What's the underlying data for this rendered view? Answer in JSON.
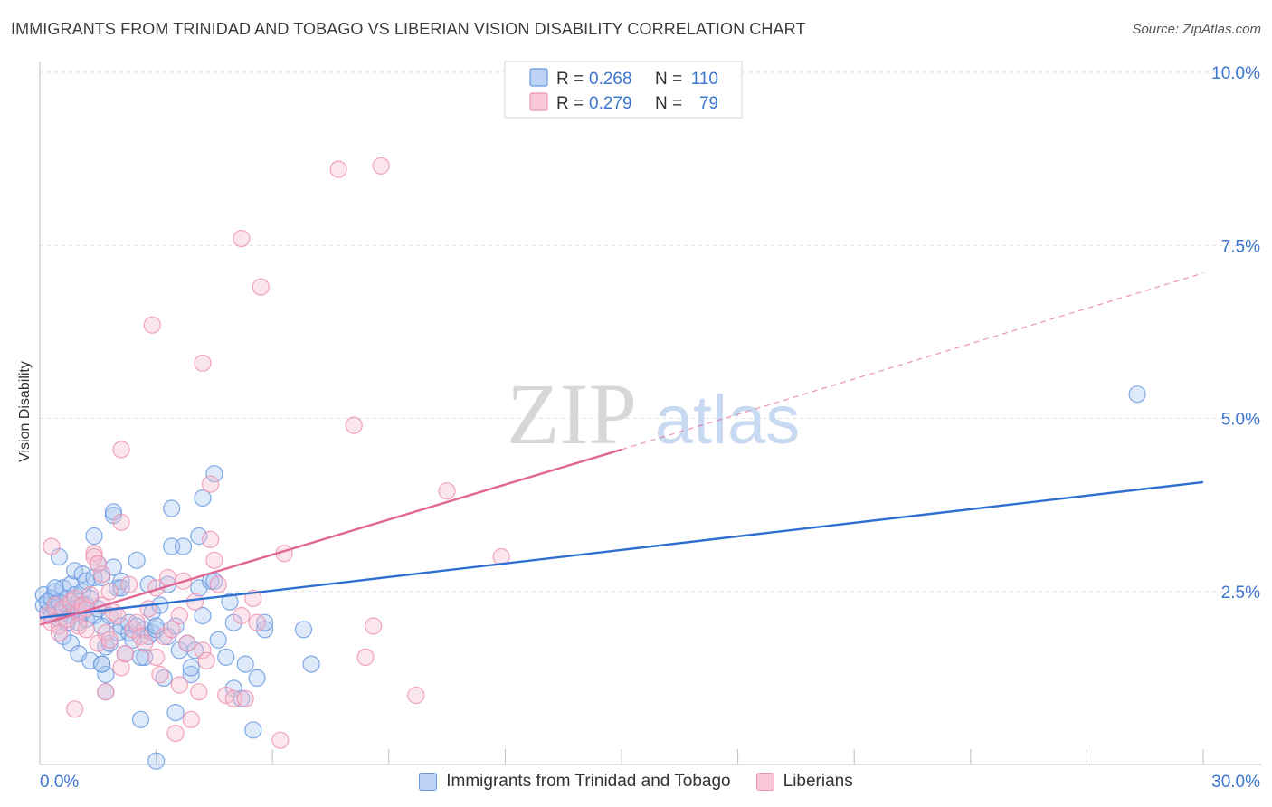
{
  "header": {
    "title": "IMMIGRANTS FROM TRINIDAD AND TOBAGO VS LIBERIAN VISION DISABILITY CORRELATION CHART",
    "source": "Source: ZipAtlas.com"
  },
  "watermark": {
    "zip": "ZIP",
    "atlas": "atlas"
  },
  "chart_data": {
    "type": "scatter",
    "ylabel": "Vision Disability",
    "xlim": [
      0,
      30
    ],
    "ylim": [
      0,
      10
    ],
    "x_tick_labels": [
      {
        "value": 0,
        "label": "0.0%"
      },
      {
        "value": 30,
        "label": "30.0%"
      }
    ],
    "y_tick_labels": [
      {
        "value": 2.5,
        "label": "2.5%"
      },
      {
        "value": 5.0,
        "label": "5.0%"
      },
      {
        "value": 7.5,
        "label": "7.5%"
      },
      {
        "value": 10.0,
        "label": "10.0%"
      }
    ],
    "grid": true,
    "legend": {
      "placement": "top-center",
      "entries": [
        {
          "r_label": "R =",
          "r_value": "0.268",
          "n_label": "N =",
          "n_value": "110"
        },
        {
          "r_label": "R =",
          "r_value": "0.279",
          "n_label": "N =",
          "n_value": "79"
        }
      ]
    },
    "series": [
      {
        "name": "Immigrants from Trinidad and Tobago",
        "color": "#6a9ae0",
        "line_color": "#2f6fd0",
        "trend": {
          "x": [
            0,
            30
          ],
          "y": [
            2.12,
            4.08
          ]
        },
        "points": [
          [
            0.1,
            2.3
          ],
          [
            0.1,
            2.45
          ],
          [
            0.2,
            2.2
          ],
          [
            0.2,
            2.35
          ],
          [
            0.3,
            2.15
          ],
          [
            0.3,
            2.4
          ],
          [
            0.4,
            2.25
          ],
          [
            0.4,
            2.5
          ],
          [
            0.5,
            2.1
          ],
          [
            0.5,
            2.35
          ],
          [
            0.5,
            3.0
          ],
          [
            0.6,
            2.2
          ],
          [
            0.6,
            1.85
          ],
          [
            0.6,
            2.55
          ],
          [
            0.7,
            2.3
          ],
          [
            0.7,
            2.4
          ],
          [
            0.8,
            2.15
          ],
          [
            0.8,
            2.6
          ],
          [
            0.8,
            1.75
          ],
          [
            0.9,
            2.45
          ],
          [
            0.9,
            2.8
          ],
          [
            0.9,
            2.25
          ],
          [
            1.0,
            2.05
          ],
          [
            1.0,
            2.35
          ],
          [
            1.0,
            1.6
          ],
          [
            1.1,
            2.5
          ],
          [
            1.1,
            2.2
          ],
          [
            1.1,
            2.75
          ],
          [
            1.2,
            2.3
          ],
          [
            1.2,
            2.65
          ],
          [
            1.2,
            2.1
          ],
          [
            1.3,
            2.4
          ],
          [
            1.3,
            1.5
          ],
          [
            1.4,
            3.3
          ],
          [
            1.4,
            2.15
          ],
          [
            1.4,
            2.7
          ],
          [
            1.5,
            2.9
          ],
          [
            1.5,
            2.25
          ],
          [
            1.6,
            2.0
          ],
          [
            1.6,
            1.45
          ],
          [
            1.6,
            2.7
          ],
          [
            1.7,
            1.7
          ],
          [
            1.7,
            1.3
          ],
          [
            1.7,
            1.05
          ],
          [
            1.8,
            1.75
          ],
          [
            1.8,
            2.15
          ],
          [
            1.9,
            3.6
          ],
          [
            1.9,
            2.85
          ],
          [
            1.9,
            3.65
          ],
          [
            2.0,
            2.55
          ],
          [
            2.0,
            1.9
          ],
          [
            2.1,
            2.65
          ],
          [
            2.1,
            2.0
          ],
          [
            2.2,
            1.6
          ],
          [
            2.3,
            1.9
          ],
          [
            2.3,
            2.05
          ],
          [
            2.4,
            1.8
          ],
          [
            2.5,
            2.95
          ],
          [
            2.5,
            2.0
          ],
          [
            2.6,
            0.65
          ],
          [
            2.7,
            1.55
          ],
          [
            2.7,
            1.95
          ],
          [
            2.8,
            1.85
          ],
          [
            2.8,
            2.6
          ],
          [
            2.9,
            1.9
          ],
          [
            2.9,
            2.2
          ],
          [
            3.0,
            1.95
          ],
          [
            3.0,
            0.05
          ],
          [
            3.1,
            2.3
          ],
          [
            3.2,
            1.25
          ],
          [
            3.3,
            2.6
          ],
          [
            3.3,
            1.85
          ],
          [
            3.4,
            3.7
          ],
          [
            3.4,
            3.15
          ],
          [
            3.5,
            0.75
          ],
          [
            3.5,
            2.0
          ],
          [
            3.6,
            1.65
          ],
          [
            3.7,
            3.15
          ],
          [
            3.8,
            1.75
          ],
          [
            3.9,
            1.3
          ],
          [
            3.9,
            1.4
          ],
          [
            4.0,
            1.65
          ],
          [
            4.1,
            2.55
          ],
          [
            4.1,
            3.3
          ],
          [
            4.2,
            2.15
          ],
          [
            4.2,
            3.85
          ],
          [
            4.4,
            2.65
          ],
          [
            4.5,
            2.65
          ],
          [
            4.5,
            4.2
          ],
          [
            4.6,
            1.8
          ],
          [
            4.8,
            1.55
          ],
          [
            4.9,
            2.35
          ],
          [
            5.0,
            2.05
          ],
          [
            5.0,
            1.1
          ],
          [
            5.2,
            0.95
          ],
          [
            5.3,
            1.45
          ],
          [
            5.5,
            0.5
          ],
          [
            5.6,
            1.25
          ],
          [
            5.8,
            1.95
          ],
          [
            5.8,
            2.05
          ],
          [
            6.8,
            1.95
          ],
          [
            7.0,
            1.45
          ],
          [
            1.6,
            1.45
          ],
          [
            0.4,
            2.55
          ],
          [
            2.1,
            2.55
          ],
          [
            1.1,
            2.3
          ],
          [
            0.7,
            2.05
          ],
          [
            3.0,
            2.0
          ],
          [
            2.6,
            1.55
          ],
          [
            28.3,
            5.35
          ]
        ]
      },
      {
        "name": "Liberians",
        "color": "#ee93b2",
        "line_color": "#e06592",
        "trend": {
          "x": [
            0,
            15
          ],
          "y": [
            2.02,
            4.55
          ]
        },
        "trend_dashed": {
          "x": [
            15,
            30
          ],
          "y": [
            4.55,
            7.1
          ]
        },
        "points": [
          [
            0.2,
            2.15
          ],
          [
            0.3,
            2.05
          ],
          [
            0.3,
            3.15
          ],
          [
            0.4,
            2.3
          ],
          [
            0.5,
            2.0
          ],
          [
            0.5,
            1.9
          ],
          [
            0.6,
            2.25
          ],
          [
            0.7,
            2.1
          ],
          [
            0.8,
            2.35
          ],
          [
            0.9,
            2.4
          ],
          [
            1.0,
            2.2
          ],
          [
            1.0,
            2.0
          ],
          [
            1.1,
            2.3
          ],
          [
            1.2,
            1.95
          ],
          [
            1.2,
            2.25
          ],
          [
            1.3,
            2.45
          ],
          [
            1.4,
            3.05
          ],
          [
            1.4,
            3.0
          ],
          [
            1.5,
            2.9
          ],
          [
            1.5,
            1.75
          ],
          [
            1.6,
            2.3
          ],
          [
            1.6,
            2.75
          ],
          [
            1.7,
            1.9
          ],
          [
            1.7,
            1.05
          ],
          [
            1.8,
            1.8
          ],
          [
            1.8,
            2.5
          ],
          [
            1.9,
            2.2
          ],
          [
            2.0,
            2.15
          ],
          [
            2.1,
            3.5
          ],
          [
            2.1,
            1.4
          ],
          [
            2.2,
            1.6
          ],
          [
            2.3,
            2.6
          ],
          [
            2.4,
            1.95
          ],
          [
            2.5,
            2.05
          ],
          [
            2.6,
            1.85
          ],
          [
            2.7,
            1.75
          ],
          [
            2.8,
            2.25
          ],
          [
            3.0,
            1.55
          ],
          [
            3.0,
            2.55
          ],
          [
            3.1,
            1.3
          ],
          [
            3.2,
            1.85
          ],
          [
            3.3,
            2.7
          ],
          [
            3.4,
            1.95
          ],
          [
            3.5,
            0.45
          ],
          [
            3.6,
            2.15
          ],
          [
            3.7,
            2.65
          ],
          [
            3.8,
            1.75
          ],
          [
            3.9,
            0.65
          ],
          [
            4.0,
            2.35
          ],
          [
            4.1,
            1.05
          ],
          [
            4.2,
            1.65
          ],
          [
            4.3,
            1.5
          ],
          [
            4.4,
            3.25
          ],
          [
            4.5,
            2.95
          ],
          [
            4.6,
            2.6
          ],
          [
            4.8,
            1.0
          ],
          [
            5.0,
            0.95
          ],
          [
            5.2,
            2.15
          ],
          [
            5.3,
            0.95
          ],
          [
            5.5,
            2.4
          ],
          [
            5.6,
            2.05
          ],
          [
            6.2,
            0.35
          ],
          [
            6.3,
            3.05
          ],
          [
            7.7,
            8.6
          ],
          [
            8.1,
            4.9
          ],
          [
            8.4,
            1.55
          ],
          [
            8.6,
            2.0
          ],
          [
            8.8,
            8.65
          ],
          [
            9.7,
            1.0
          ],
          [
            10.5,
            3.95
          ],
          [
            11.9,
            3.0
          ],
          [
            0.9,
            0.8
          ],
          [
            2.1,
            4.55
          ],
          [
            2.9,
            6.35
          ],
          [
            4.2,
            5.8
          ],
          [
            5.2,
            7.6
          ],
          [
            5.7,
            6.9
          ],
          [
            4.4,
            4.05
          ],
          [
            3.6,
            1.15
          ]
        ]
      }
    ]
  }
}
